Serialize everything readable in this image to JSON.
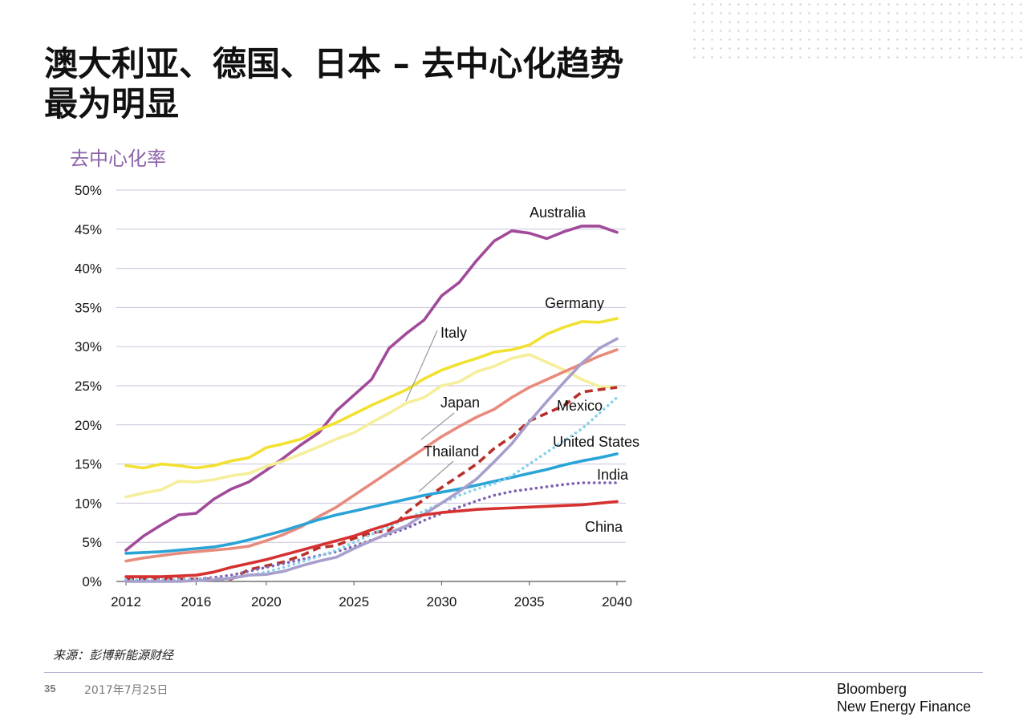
{
  "slide": {
    "title_line1": "澳大利亚、德国、日本 – 去中心化趋势",
    "title_line2": "最为明显",
    "source": "来源：彭博新能源财经",
    "page_number": "35",
    "date": "2017年7月25日",
    "brand_line1": "Bloomberg",
    "brand_line2": "New Energy Finance"
  },
  "chart_data": {
    "type": "line",
    "title": "去中心化率",
    "xlabel": "",
    "ylabel": "",
    "x_ticks": [
      2012,
      2016,
      2020,
      2025,
      2030,
      2035,
      2040
    ],
    "y_ticks": [
      "0%",
      "5%",
      "10%",
      "15%",
      "20%",
      "25%",
      "30%",
      "35%",
      "40%",
      "45%",
      "50%"
    ],
    "xlim": [
      2012,
      2040
    ],
    "ylim": [
      0,
      50
    ],
    "grid": true,
    "x": [
      2012,
      2013,
      2014,
      2015,
      2016,
      2017,
      2018,
      2019,
      2020,
      2021,
      2022,
      2023,
      2024,
      2025,
      2026,
      2027,
      2028,
      2029,
      2030,
      2031,
      2032,
      2033,
      2034,
      2035,
      2036,
      2037,
      2038,
      2039,
      2040
    ],
    "series": [
      {
        "name": "Australia",
        "color": "#a24a9a",
        "dash": "solid",
        "values": [
          4.0,
          5.8,
          7.2,
          8.5,
          8.7,
          10.5,
          11.8,
          12.7,
          14.2,
          15.8,
          17.5,
          19.0,
          21.8,
          23.8,
          25.8,
          29.8,
          31.7,
          33.4,
          36.5,
          38.2,
          41.0,
          43.5,
          44.8,
          44.5,
          43.8,
          44.7,
          45.4,
          45.4,
          44.6
        ]
      },
      {
        "name": "Germany",
        "color": "#f2e130",
        "dash": "solid",
        "values": [
          14.8,
          14.5,
          15.0,
          14.8,
          14.5,
          14.8,
          15.4,
          15.8,
          17.1,
          17.6,
          18.2,
          19.4,
          20.3,
          21.4,
          22.5,
          23.5,
          24.5,
          25.9,
          27.0,
          27.8,
          28.5,
          29.3,
          29.6,
          30.2,
          31.6,
          32.5,
          33.2,
          33.1,
          33.6
        ]
      },
      {
        "name": "Italy",
        "color": "#f5ee9a",
        "dash": "solid",
        "values": [
          10.8,
          11.3,
          11.7,
          12.8,
          12.7,
          13.0,
          13.5,
          13.8,
          14.7,
          15.4,
          16.3,
          17.2,
          18.2,
          19.0,
          20.3,
          21.5,
          22.8,
          23.5,
          25.0,
          25.5,
          26.8,
          27.5,
          28.5,
          29.0,
          28.0,
          27.0,
          25.8,
          24.9,
          24.8
        ]
      },
      {
        "name": "Japan",
        "color": "#e88a7c",
        "dash": "solid",
        "values": [
          2.6,
          3.0,
          3.3,
          3.6,
          3.8,
          4.0,
          4.2,
          4.5,
          5.2,
          6.0,
          7.0,
          8.3,
          9.5,
          11.0,
          12.5,
          14.0,
          15.5,
          17.0,
          18.5,
          19.8,
          21.0,
          22.0,
          23.5,
          24.8,
          25.8,
          26.8,
          27.8,
          28.8,
          29.6
        ]
      },
      {
        "name": "Mexico",
        "color": "#b8302a",
        "dash": "dashed",
        "values": [
          0.3,
          0.3,
          0.3,
          0.3,
          0.3,
          0.3,
          0.3,
          1.5,
          2.0,
          2.5,
          3.3,
          4.3,
          4.6,
          5.5,
          6.2,
          6.5,
          8.8,
          10.5,
          12.0,
          13.5,
          15.0,
          17.0,
          18.5,
          20.5,
          21.5,
          22.5,
          24.2,
          24.5,
          24.8
        ]
      },
      {
        "name": "United States",
        "color": "#2aa3d6",
        "dash": "solid",
        "values": [
          3.6,
          3.7,
          3.8,
          4.0,
          4.2,
          4.4,
          4.8,
          5.3,
          5.9,
          6.5,
          7.2,
          7.9,
          8.5,
          9.0,
          9.5,
          10.0,
          10.5,
          11.0,
          11.4,
          11.8,
          12.3,
          12.8,
          13.3,
          13.8,
          14.3,
          14.9,
          15.4,
          15.8,
          16.3
        ]
      },
      {
        "name": "India",
        "color": "#7e62b0",
        "dash": "dotted",
        "values": [
          0.2,
          0.2,
          0.2,
          0.2,
          0.3,
          0.5,
          0.8,
          1.3,
          1.8,
          2.3,
          2.8,
          3.3,
          3.8,
          4.5,
          5.3,
          6.0,
          6.8,
          7.8,
          8.7,
          9.5,
          10.3,
          11.0,
          11.5,
          11.8,
          12.1,
          12.4,
          12.6,
          12.6,
          12.6
        ]
      },
      {
        "name": "Thailand",
        "color": "#86d0ee",
        "dash": "dotted",
        "values": [
          0.2,
          0.2,
          0.2,
          0.2,
          0.3,
          0.3,
          0.5,
          0.8,
          1.2,
          1.8,
          2.5,
          3.2,
          4.0,
          5.0,
          6.0,
          7.0,
          8.0,
          9.0,
          10.0,
          11.0,
          11.8,
          12.5,
          13.5,
          15.0,
          16.5,
          18.0,
          19.5,
          21.5,
          23.5
        ]
      },
      {
        "name": "",
        "color": "#a89fcd",
        "dash": "solid",
        "values": [
          0.0,
          0.0,
          0.0,
          0.0,
          0.1,
          0.2,
          0.4,
          0.8,
          0.9,
          1.3,
          2.0,
          2.6,
          3.1,
          4.2,
          5.2,
          6.2,
          7.1,
          8.6,
          10.0,
          11.5,
          13.1,
          15.3,
          17.6,
          20.4,
          23.0,
          25.5,
          27.9,
          29.8,
          31.0
        ]
      },
      {
        "name": "China",
        "color": "#d63131",
        "dash": "solid",
        "values": [
          0.6,
          0.6,
          0.6,
          0.7,
          0.8,
          1.2,
          1.8,
          2.3,
          2.8,
          3.4,
          4.0,
          4.6,
          5.2,
          5.8,
          6.6,
          7.3,
          8.1,
          8.5,
          8.8,
          9.0,
          9.2,
          9.3,
          9.4,
          9.5,
          9.6,
          9.7,
          9.8,
          10.0,
          10.2
        ]
      }
    ],
    "labels": [
      {
        "text": "Australia",
        "series": "Australia"
      },
      {
        "text": "Germany",
        "series": "Germany"
      },
      {
        "text": "Italy",
        "series": "Italy"
      },
      {
        "text": "Japan",
        "series": "Japan"
      },
      {
        "text": "Mexico",
        "series": "Mexico"
      },
      {
        "text": "Thailand",
        "series": "Thailand"
      },
      {
        "text": "United States",
        "series": "United States"
      },
      {
        "text": "India",
        "series": "India"
      },
      {
        "text": "China",
        "series": "China"
      }
    ]
  }
}
